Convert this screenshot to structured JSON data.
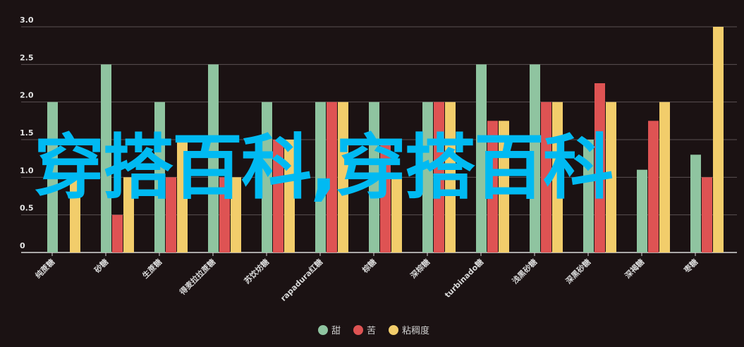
{
  "chart_data": {
    "type": "bar",
    "categories": [
      "纯蔗糖",
      "砂糖",
      "生蔗糖",
      "得麦拉拉蔗糖",
      "苏饮坊糖",
      "rapadura红糖",
      "棕糖",
      "深棕糖",
      "turbinado糖",
      "浅黑砂糖",
      "深黑砂糖",
      "深褐糖",
      "枣糖"
    ],
    "series": [
      {
        "name": "甜",
        "color": "#8fc4a0",
        "values": [
          2.0,
          2.5,
          2.0,
          2.5,
          2.0,
          2.0,
          2.0,
          2.0,
          2.5,
          2.5,
          1.5,
          1.1,
          1.3
        ]
      },
      {
        "name": "苦",
        "color": "#de5353",
        "values": [
          0,
          0.5,
          1.0,
          1.0,
          1.5,
          2.0,
          1.5,
          2.0,
          1.75,
          2.0,
          2.25,
          1.75,
          1.0
        ]
      },
      {
        "name": "粘稠度",
        "color": "#f2cd6b",
        "values": [
          1.0,
          1.0,
          1.5,
          1.0,
          1.5,
          2.0,
          1.0,
          2.0,
          1.75,
          2.0,
          2.0,
          2.0,
          3.0
        ]
      }
    ],
    "yticks": [
      "0",
      "0.5",
      "1.0",
      "1.5",
      "2.0",
      "2.5",
      "3.0"
    ],
    "ylim": [
      0,
      3
    ],
    "grid": true,
    "legend": "bottom-center"
  },
  "watermark": "穿搭百科,穿搭百科"
}
